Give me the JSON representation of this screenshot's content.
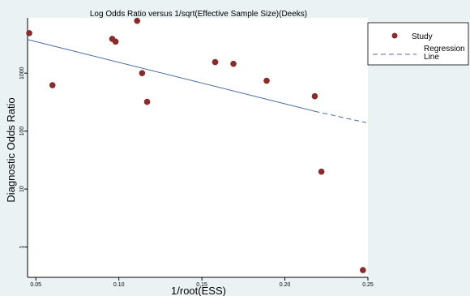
{
  "chart_data": {
    "type": "scatter",
    "title": "Log Odds Ratio versus 1/sqrt(Effective Sample Size)(Deeks)",
    "xlabel": "1/root(ESS)",
    "ylabel": "Diagnostic Odds Ratio",
    "xscale": "linear",
    "yscale": "log",
    "xlim": [
      0.045,
      0.25
    ],
    "ylim": [
      0.3,
      9000
    ],
    "xticks": [
      0.05,
      0.1,
      0.15,
      0.2,
      0.25
    ],
    "xtick_labels": [
      "0.05",
      "0.10",
      "0.15",
      "0.20",
      "0.25"
    ],
    "yticks": [
      1,
      10,
      100,
      1000
    ],
    "ytick_labels": [
      "1",
      "10",
      "100",
      "1000"
    ],
    "grid": false,
    "legend_position": "right",
    "series": [
      {
        "name": "Study",
        "kind": "scatter",
        "color": "#8b2a2a",
        "points": [
          {
            "x": 0.046,
            "y": 4900
          },
          {
            "x": 0.06,
            "y": 620
          },
          {
            "x": 0.096,
            "y": 3900
          },
          {
            "x": 0.098,
            "y": 3500
          },
          {
            "x": 0.111,
            "y": 8000
          },
          {
            "x": 0.114,
            "y": 1000
          },
          {
            "x": 0.117,
            "y": 320
          },
          {
            "x": 0.158,
            "y": 1550
          },
          {
            "x": 0.169,
            "y": 1450
          },
          {
            "x": 0.189,
            "y": 740
          },
          {
            "x": 0.218,
            "y": 400
          },
          {
            "x": 0.222,
            "y": 20
          },
          {
            "x": 0.247,
            "y": 0.4
          }
        ]
      },
      {
        "name": "Regression Line",
        "kind": "line",
        "color": "#4a6b9e",
        "points": [
          {
            "x": 0.045,
            "y": 3800
          },
          {
            "x": 0.218,
            "y": 220
          }
        ],
        "dashed_points": [
          {
            "x": 0.218,
            "y": 220
          },
          {
            "x": 0.249,
            "y": 140
          }
        ]
      }
    ],
    "legend": [
      {
        "label": "Study",
        "marker": "dot"
      },
      {
        "label": "Regression\nLine",
        "marker": "dashed-line"
      }
    ]
  }
}
